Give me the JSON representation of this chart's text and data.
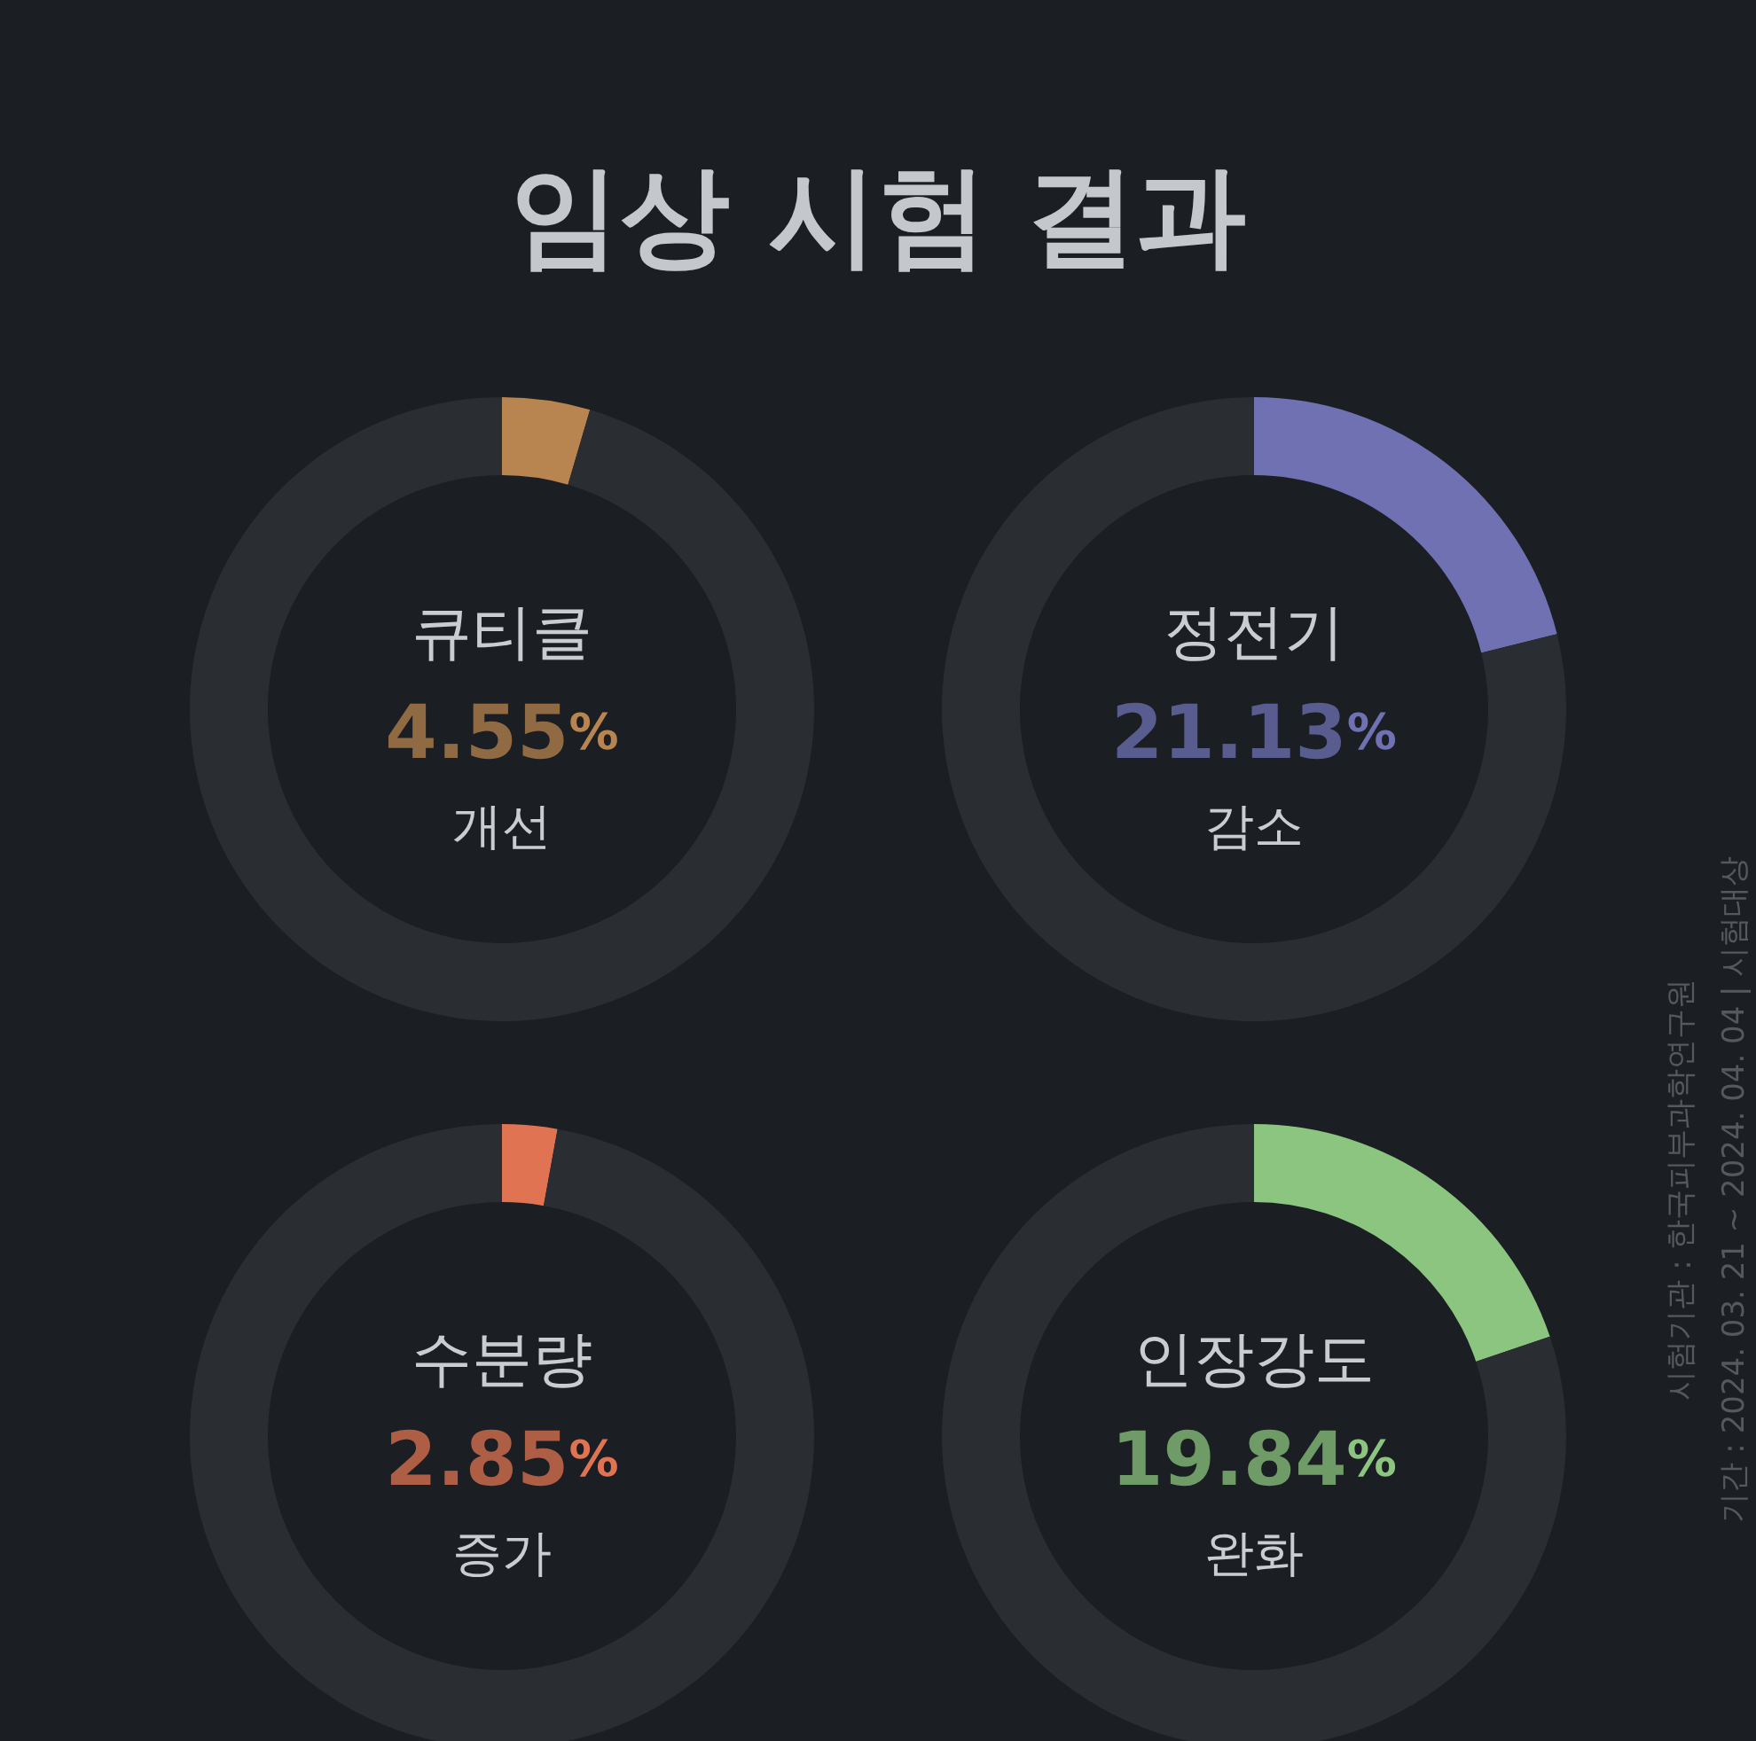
{
  "chart_data": [
    {
      "type": "other",
      "title": "임상 시험 결과",
      "annotations": [
        "시험기관 : 한국피부과학연구원",
        "기간 : 2024. 03. 21 ~ 2024. 04. 04 | 시험대상"
      ]
    },
    {
      "type": "donut",
      "categories": [
        "큐티클",
        null
      ],
      "values": [
        4.55,
        95.45
      ],
      "colors": [
        "#b8844f",
        "#2a2d32"
      ],
      "value_labels": [
        "4.55%",
        null
      ],
      "subtitle": "개선"
    },
    {
      "type": "donut",
      "categories": [
        "정전기",
        null
      ],
      "values": [
        21.13,
        78.87
      ],
      "colors": [
        "#6f71b3",
        "#2a2d32"
      ],
      "value_labels": [
        "21.13%",
        null
      ],
      "subtitle": "감소"
    },
    {
      "type": "donut",
      "categories": [
        "수분량",
        null
      ],
      "values": [
        2.85,
        97.15
      ],
      "colors": [
        "#e07452",
        "#2a2d32"
      ],
      "value_labels": [
        "2.85%",
        null
      ],
      "subtitle": "증가"
    },
    {
      "type": "donut",
      "categories": [
        "인장강도",
        null
      ],
      "values": [
        19.84,
        80.16
      ],
      "colors": [
        "#8cc57f",
        "#2a2d32"
      ],
      "value_labels": [
        "19.84%",
        null
      ],
      "subtitle": "완화"
    }
  ]
}
